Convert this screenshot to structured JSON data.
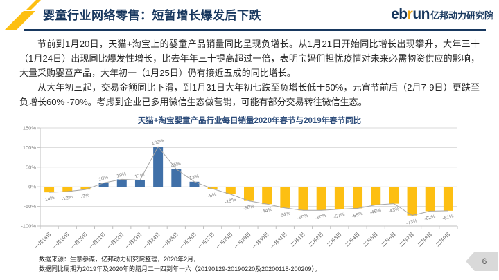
{
  "slide": {
    "title": "婴童行业网络零售：短暂增长爆发后下跌",
    "logo": {
      "part1": "eb",
      "part2": "r",
      "part3": "un",
      "suffix": "亿邦动力研究院"
    },
    "paragraphs": [
      "节前到1月20日，天猫+淘宝上的婴童产品销量同比呈现负增长。从1月21日开始同比增长出现攀升，大年三十（1月24日）出现同比爆发性增长，比去年年三十提高超过一倍，表明宝妈们担忧疫情对未来必需物资供应的影响，大量采购婴童产品，大年初一（1月25日）仍有接近五成的同比增长。",
      "从大年初三起，交易金额同比下滑，到1月31日大年初七跌至负增长低于50%，元宵节前后（2月7-9日）更跌至负增长60%~70%。考虑到企业已多用微信生态做营销，可能有部分交易转往微信生态。"
    ],
    "footer_lines": [
      "数据来源：生意参谋，亿邦动力研究院整理，2020年2月，",
      "数据同比周期为2019年及2020年的腊月二十四到年十六（20190129-20190220及20200118-200209）。"
    ],
    "page_number": "6"
  },
  "chart_data": {
    "type": "bar",
    "title": "天猫+淘宝婴童产品行业每日销量2020年春节与2019年春节同比",
    "categories": [
      "一月18日",
      "一月19日",
      "一月20日",
      "一月21日",
      "一月22日",
      "一月23日",
      "一月24日",
      "一月25日",
      "一月26日",
      "一月27日",
      "一月28日",
      "一月29日",
      "一月30日",
      "一月31日",
      "二月1日",
      "二月2日",
      "二月3日",
      "二月4日",
      "二月5日",
      "二月6日",
      "二月7日",
      "二月8日",
      "二月9日"
    ],
    "values": [
      -14,
      -12,
      -7,
      10,
      19,
      17,
      102,
      45,
      13,
      -5,
      -19,
      -36,
      -44,
      -54,
      -60,
      -60,
      -57,
      -55,
      -46,
      -43,
      -73,
      -62,
      -61
    ],
    "unit": "%",
    "ylabel": "",
    "xlabel": "",
    "ylim": [
      -100,
      150
    ],
    "yticks": [
      150,
      100,
      50,
      0,
      -50,
      -100
    ],
    "grid": true,
    "legend": false,
    "overlay_line": true,
    "colors": {
      "positive_bar": "#4070a8",
      "negative_bar": "#fdbf12",
      "line": "#a6a6a6",
      "grid": "#d9d9d9",
      "axis": "#bfbfbf",
      "tick_label": "#808080",
      "data_label": "#7f7f7f",
      "x_label": "#595959"
    }
  }
}
